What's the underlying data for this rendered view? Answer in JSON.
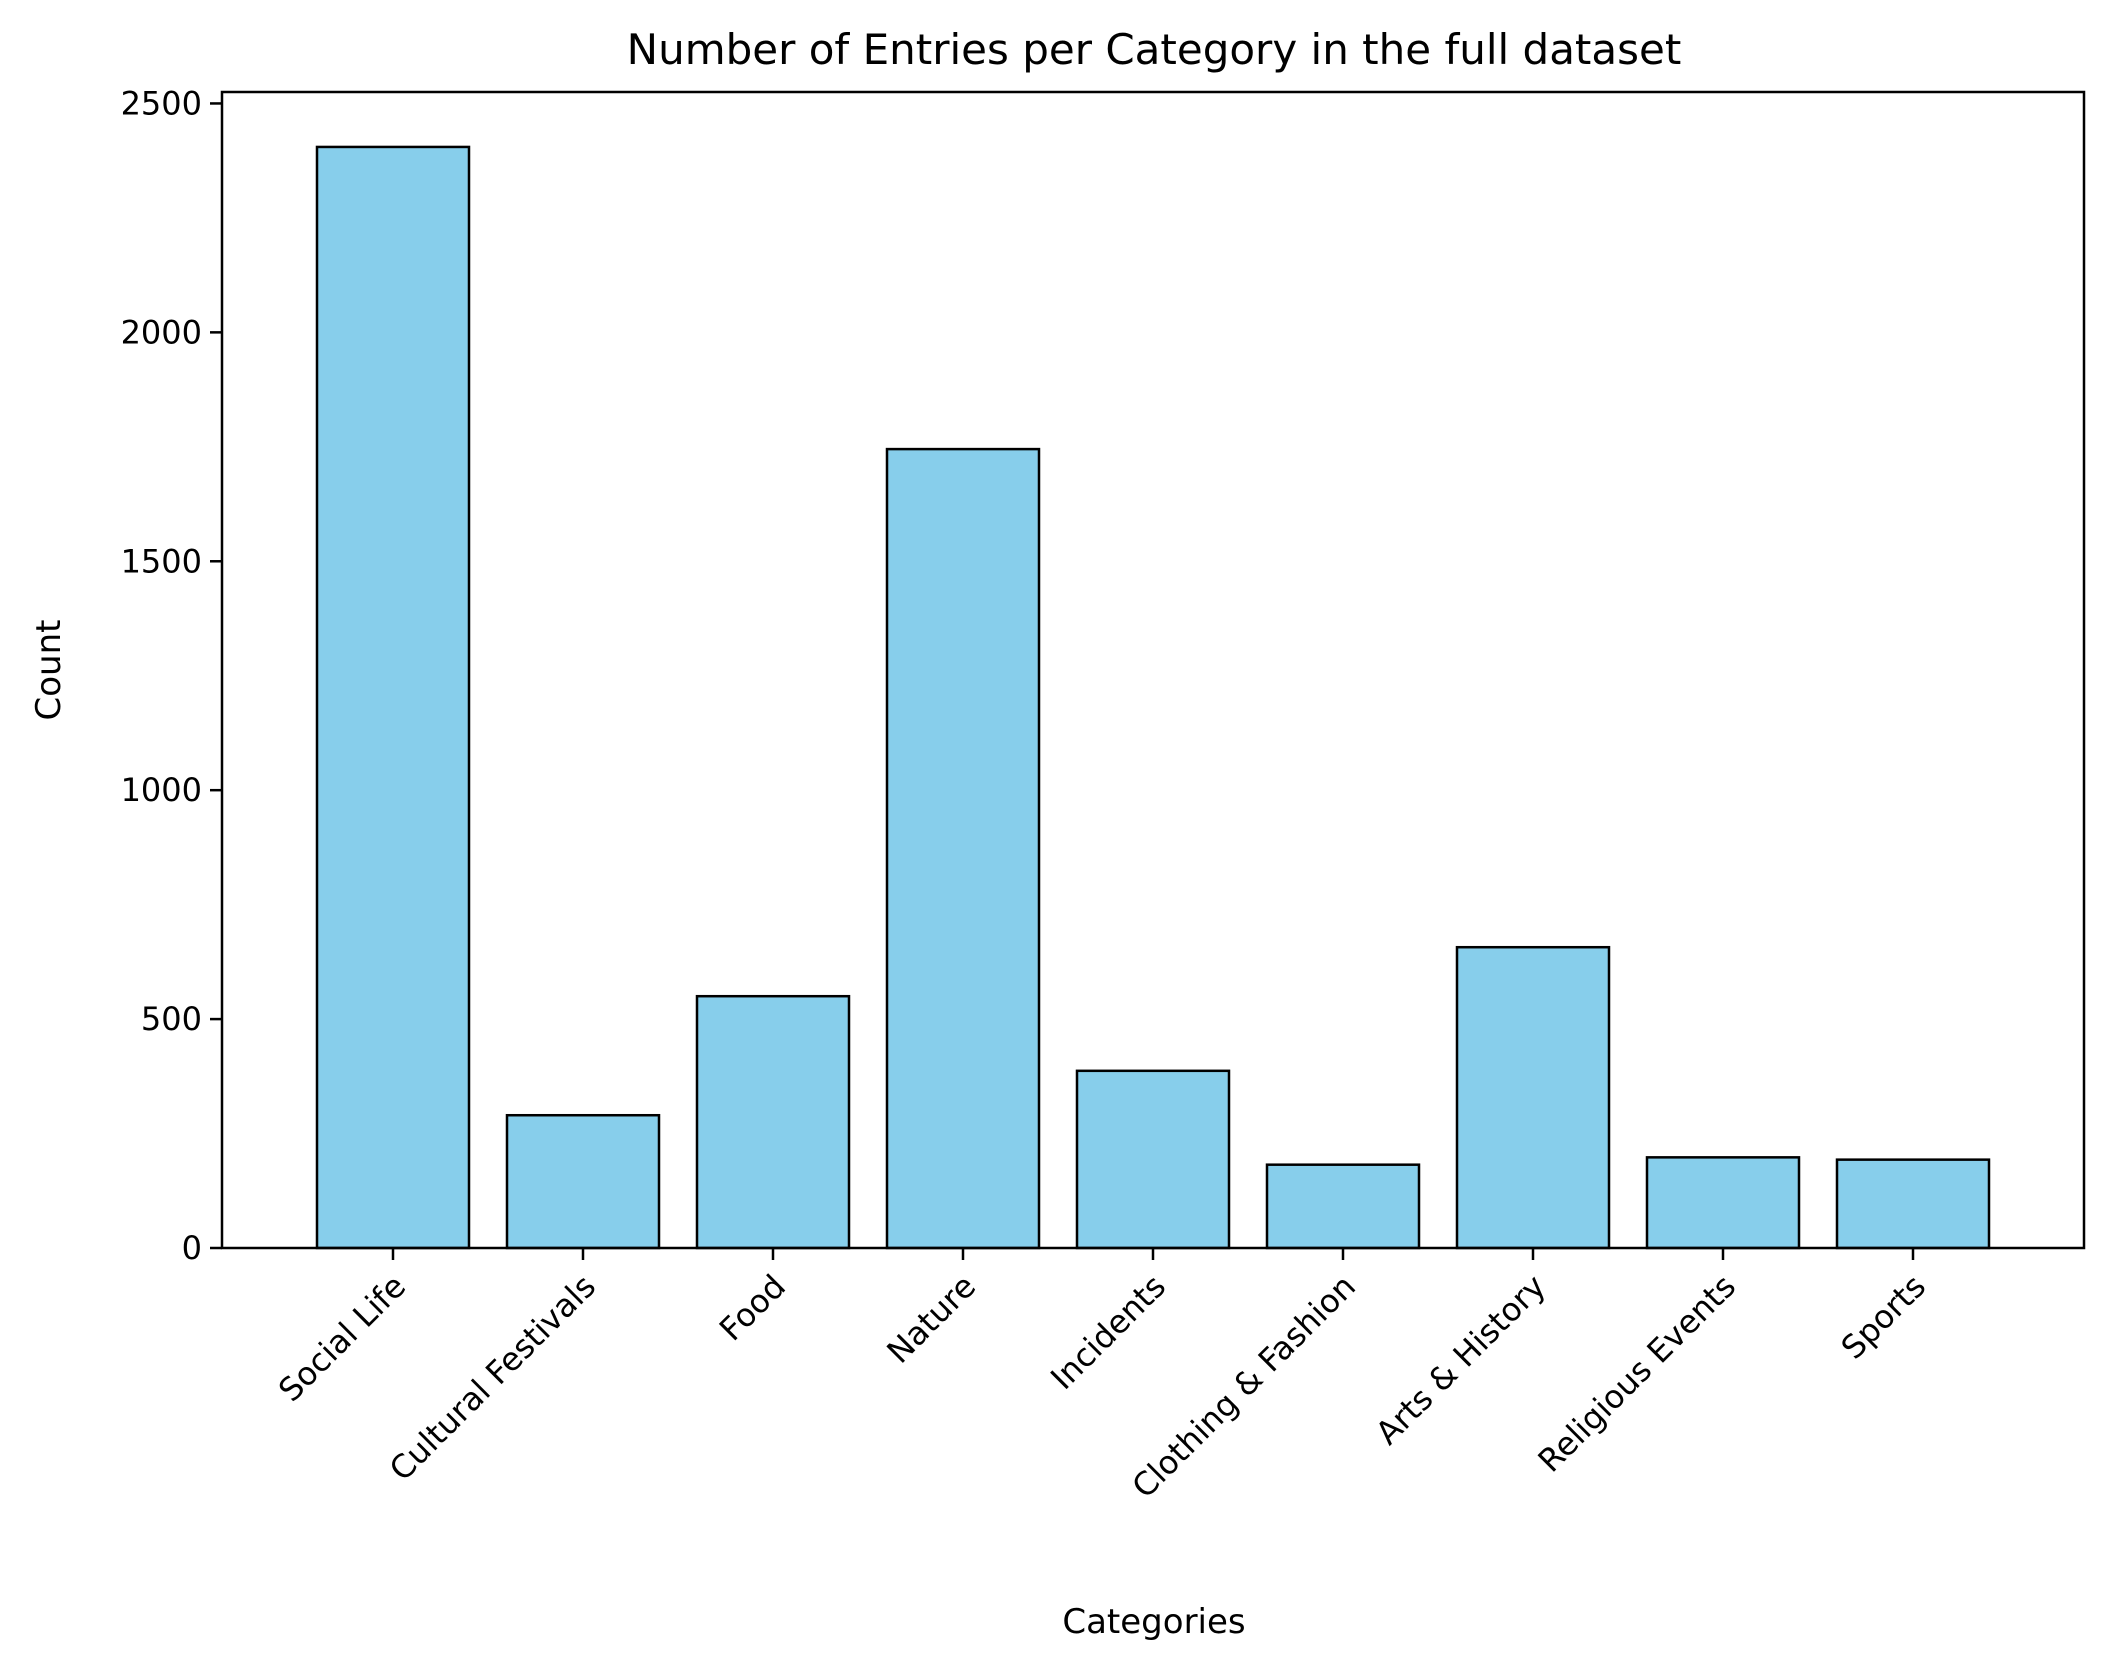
{
  "chart_data": {
    "type": "bar",
    "title": "Number of Entries per Category in the full dataset",
    "xlabel": "Categories",
    "ylabel": "Count",
    "categories": [
      "Social Life",
      "Cultural Festivals",
      "Food",
      "Nature",
      "Incidents",
      "Clothing & Fashion",
      "Arts & History",
      "Religious Events",
      "Sports"
    ],
    "values": [
      2405,
      290,
      550,
      1745,
      387,
      182,
      657,
      198,
      193
    ],
    "ylim": [
      0,
      2525
    ],
    "yticks": [
      0,
      500,
      1000,
      1500,
      2000,
      2500
    ],
    "bar_color": "#87CEEB",
    "edge_color": "#000000",
    "grid": false,
    "legend": "none"
  }
}
